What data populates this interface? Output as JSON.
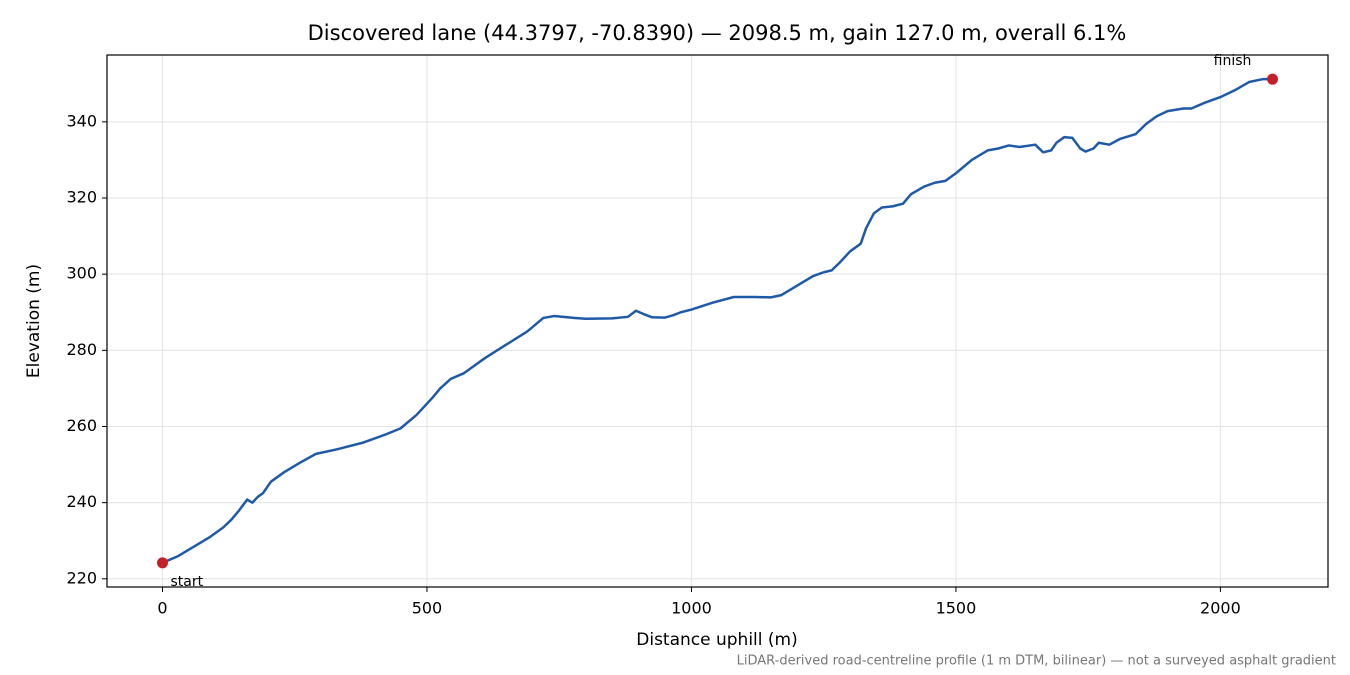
{
  "chart_data": {
    "type": "line",
    "title": "Discovered lane (44.3797, -70.8390) — 2098.5 m, gain 127.0 m, overall 6.1%",
    "xlabel": "Distance uphill (m)",
    "ylabel": "Elevation (m)",
    "note": "LiDAR-derived road-centreline profile (1 m DTM, bilinear) — not a surveyed asphalt gradient",
    "color": "#1f5aa8",
    "marker_color": "#c41e2a",
    "grid": true,
    "xlim": [
      -104.9,
      2203.4
    ],
    "ylim": [
      217.85,
      357.55
    ],
    "xticks": [
      0,
      500,
      1000,
      1500,
      2000
    ],
    "yticks": [
      220,
      240,
      260,
      280,
      300,
      320,
      340
    ],
    "x": [
      0,
      30,
      60,
      90,
      115,
      130,
      145,
      160,
      170,
      180,
      190,
      205,
      230,
      260,
      290,
      330,
      380,
      420,
      450,
      480,
      510,
      525,
      545,
      570,
      610,
      650,
      690,
      720,
      740,
      780,
      800,
      850,
      880,
      895,
      910,
      925,
      950,
      965,
      980,
      1000,
      1040,
      1080,
      1120,
      1150,
      1170,
      1200,
      1230,
      1250,
      1265,
      1280,
      1300,
      1320,
      1330,
      1345,
      1360,
      1380,
      1400,
      1415,
      1440,
      1460,
      1480,
      1500,
      1530,
      1560,
      1580,
      1600,
      1620,
      1650,
      1665,
      1680,
      1690,
      1705,
      1720,
      1735,
      1745,
      1760,
      1770,
      1790,
      1810,
      1840,
      1860,
      1880,
      1900,
      1930,
      1945,
      1970,
      2000,
      2030,
      2055,
      2080,
      2098.5
    ],
    "values": [
      224.2,
      226,
      228.5,
      231,
      233.5,
      235.5,
      238,
      240.8,
      240,
      241.5,
      242.5,
      245.5,
      248,
      250.5,
      252.8,
      254,
      255.8,
      257.8,
      259.5,
      263,
      267.5,
      270,
      272.5,
      274,
      278,
      281.5,
      285,
      288.5,
      289,
      288.5,
      288.3,
      288.4,
      288.8,
      290.4,
      289.5,
      288.7,
      288.6,
      289.2,
      290,
      290.7,
      292.5,
      294,
      294,
      293.9,
      294.5,
      297,
      299.5,
      300.5,
      301,
      303,
      306,
      308,
      312,
      316,
      317.5,
      317.8,
      318.5,
      321,
      323,
      324,
      324.5,
      326.5,
      330,
      332.5,
      333,
      333.8,
      333.4,
      334,
      332,
      332.5,
      334.5,
      336,
      335.8,
      333,
      332.2,
      333,
      334.5,
      334,
      335.5,
      336.8,
      339.5,
      341.5,
      342.8,
      343.5,
      343.5,
      345,
      346.5,
      348.5,
      350.5,
      351.2,
      351.2
    ],
    "annotations": [
      {
        "label": "start",
        "x": 0,
        "y": 224.2
      },
      {
        "label": "finish",
        "x": 2098.5,
        "y": 351.2
      }
    ]
  }
}
